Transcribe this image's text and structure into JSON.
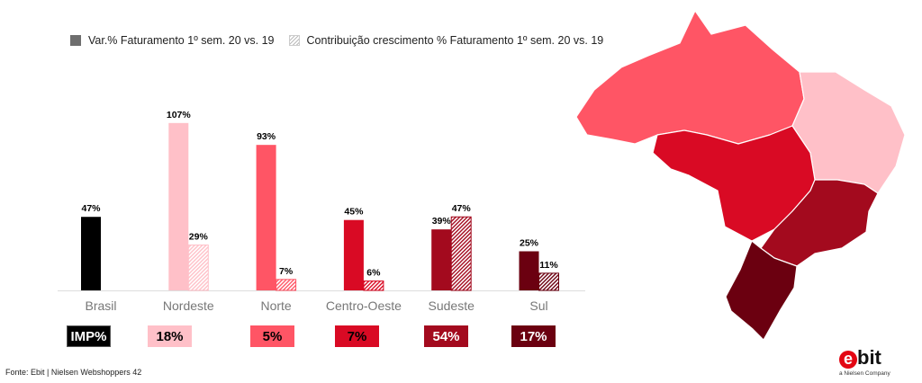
{
  "legend": {
    "solid_label": "Var.% Faturamento 1º sem. 20 vs. 19",
    "hatched_label": "Contribuição crescimento % Faturamento 1º sem. 20 vs. 19"
  },
  "chart_data": {
    "type": "bar",
    "categories": [
      "Brasil",
      "Nordeste",
      "Norte",
      "Centro-Oeste",
      "Sudeste",
      "Sul"
    ],
    "series": [
      {
        "name": "Var.% Faturamento 1º sem. 20 vs. 19",
        "values": [
          47,
          107,
          93,
          45,
          39,
          25
        ],
        "labels": [
          "47%",
          "107%",
          "93%",
          "45%",
          "39%",
          "25%"
        ]
      },
      {
        "name": "Contribuição crescimento % Faturamento 1º sem. 20 vs. 19",
        "values": [
          null,
          29,
          7,
          6,
          47,
          11
        ],
        "labels": [
          "",
          "29%",
          "7%",
          "6%",
          "47%",
          "11%"
        ]
      }
    ],
    "colors": [
      "#000000",
      "#ffc0c8",
      "#ff5565",
      "#d90a24",
      "#a30a1e",
      "#6b0010"
    ],
    "ylim": [
      0,
      110
    ],
    "grid": false,
    "legend_position": "top-left"
  },
  "imp_boxes": [
    {
      "label": "IMP%",
      "bg": "#000000",
      "fg": "#ffffff"
    },
    {
      "label": "18%",
      "bg": "#ffc0c8",
      "fg": "#000000"
    },
    {
      "label": "5%",
      "bg": "#ff5565",
      "fg": "#000000"
    },
    {
      "label": "7%",
      "bg": "#d90a24",
      "fg": "#000000"
    },
    {
      "label": "54%",
      "bg": "#a30a1e",
      "fg": "#ffffff"
    },
    {
      "label": "17%",
      "bg": "#6b0010",
      "fg": "#ffffff"
    }
  ],
  "map_regions": [
    {
      "name": "Norte",
      "color": "#ff5565"
    },
    {
      "name": "Nordeste",
      "color": "#ffc0c8"
    },
    {
      "name": "Centro-Oeste",
      "color": "#d90a24"
    },
    {
      "name": "Sudeste",
      "color": "#a30a1e"
    },
    {
      "name": "Sul",
      "color": "#6b0010"
    }
  ],
  "source": "Fonte: Ebit | Nielsen Webshoppers 42",
  "logo": {
    "brand": "ebit",
    "tagline": "a Nielsen Company"
  }
}
